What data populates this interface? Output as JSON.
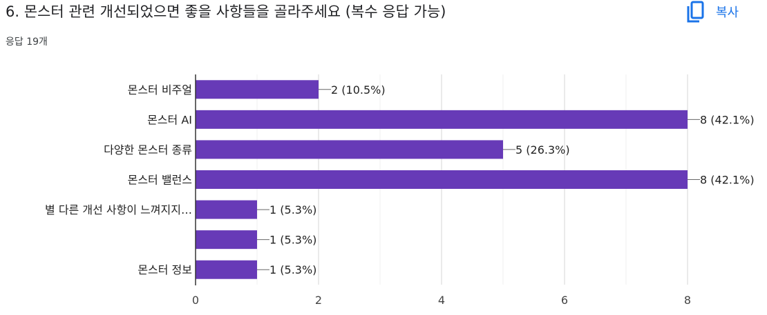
{
  "header": {
    "title": "6. 몬스터 관련 개선되었으면 좋을 사항들을 골라주세요 (복수 응답 가능)",
    "response_count": "응답 19개",
    "copy_label": "복사",
    "copy_icon": "copy-icon"
  },
  "colors": {
    "bar": "#673ab7",
    "grid": "#e0e0e0",
    "axis": "#333333",
    "accent": "#1a73e8"
  },
  "chart_data": {
    "type": "bar",
    "orientation": "horizontal",
    "categories": [
      "몬스터 비주얼",
      "몬스터 AI",
      "다양한 몬스터 종류",
      "몬스터 밸런스",
      "별 다른 개선 사항이 느껴지지…",
      "",
      "몬스터 정보"
    ],
    "values": [
      2,
      8,
      5,
      8,
      1,
      1,
      1
    ],
    "value_labels": [
      "2 (10.5%)",
      "8 (42.1%)",
      "5 (26.3%)",
      "8 (42.1%)",
      "1 (5.3%)",
      "1 (5.3%)",
      "1 (5.3%)"
    ],
    "xlim": [
      0,
      8
    ],
    "xticks": [
      0,
      2,
      4,
      6,
      8
    ],
    "grid": true
  }
}
